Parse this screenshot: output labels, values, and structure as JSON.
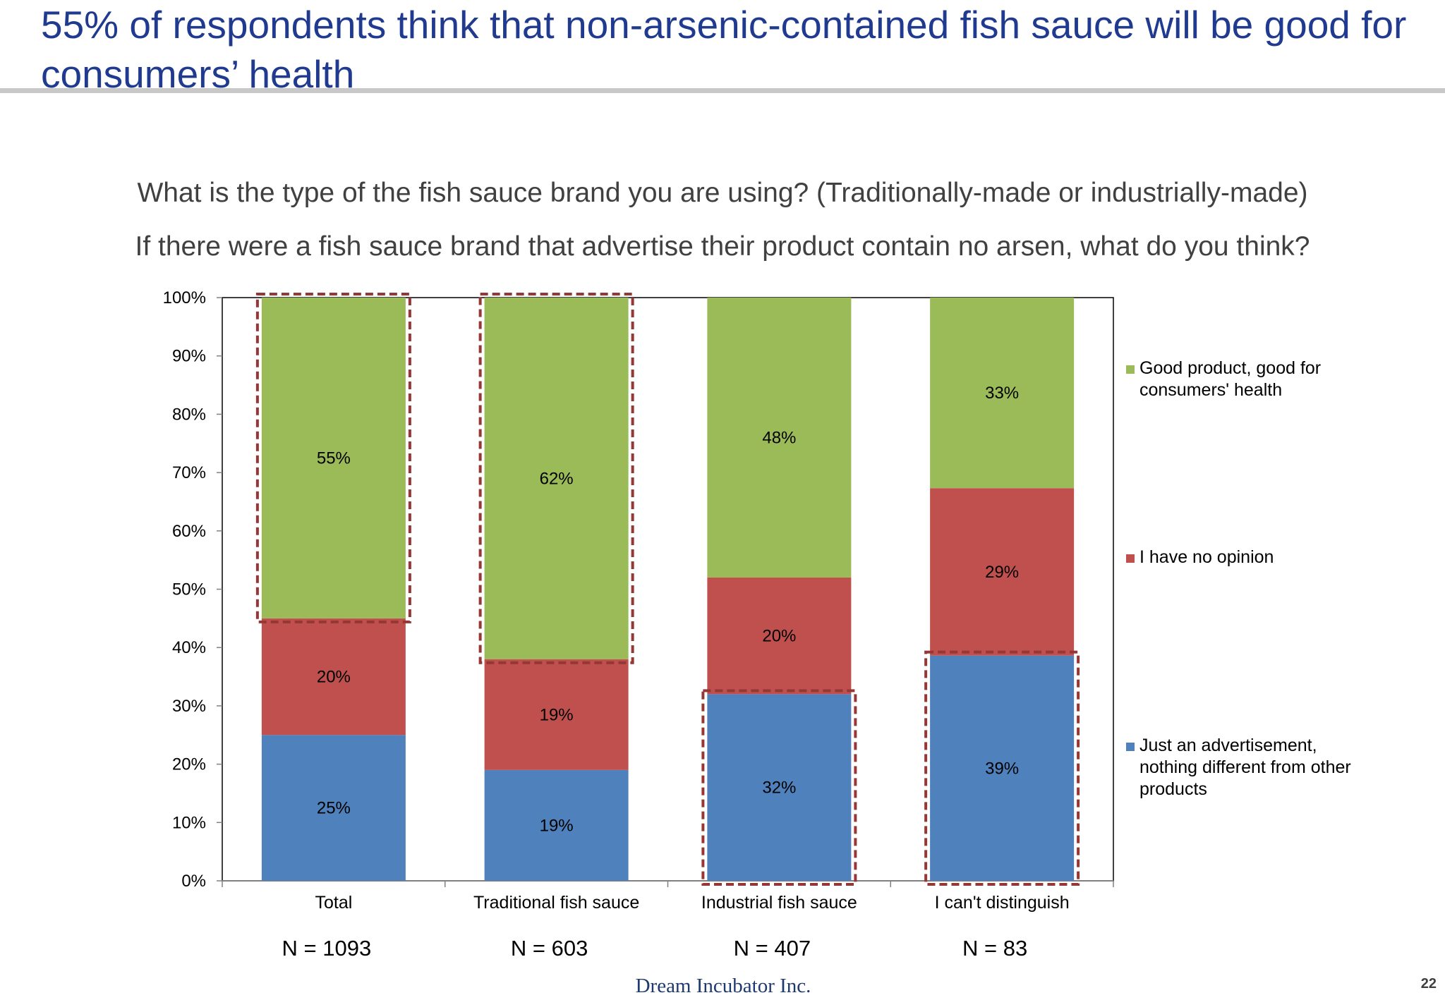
{
  "slide": {
    "title": "55% of respondents think that non-arsenic-contained fish sauce will be good for consumers’ health",
    "question1": "What is the type of the fish sauce brand you are using? (Traditionally-made or industrially-made)",
    "question2": "If there were a fish sauce brand that advertise their product contain no arsen, what do you think?",
    "footer": "Dream Incubator Inc.",
    "page_number": "22"
  },
  "chart_data": {
    "type": "bar",
    "stacked": true,
    "percent_stacked": true,
    "categories": [
      "Total",
      "Traditional fish sauce",
      "Industrial fish sauce",
      "I can't distinguish"
    ],
    "sample_sizes": [
      "N = 1093",
      "N = 603",
      "N = 407",
      "N = 83"
    ],
    "series": [
      {
        "name": "Just an advertisement, nothing different from other products",
        "values": [
          25,
          19,
          32,
          39
        ],
        "labels": [
          "25%",
          "19%",
          "32%",
          "39%"
        ],
        "color": "#4F81BD"
      },
      {
        "name": "I have no opinion",
        "values": [
          20,
          19,
          20,
          29
        ],
        "labels": [
          "20%",
          "19%",
          "20%",
          "29%"
        ],
        "color": "#C0504D"
      },
      {
        "name": "Good product, good for consumers' health",
        "values": [
          55,
          62,
          48,
          33
        ],
        "labels": [
          "55%",
          "62%",
          "48%",
          "33%"
        ],
        "color": "#9BBB59"
      }
    ],
    "yticks": [
      "0%",
      "10%",
      "20%",
      "30%",
      "40%",
      "50%",
      "60%",
      "70%",
      "80%",
      "90%",
      "100%"
    ],
    "ylim": [
      0,
      100
    ],
    "grid": false,
    "legend_position": "right",
    "highlights": [
      {
        "category": "Total",
        "series": "Good product, good for consumers' health"
      },
      {
        "category": "Traditional fish sauce",
        "series": "Good product, good for consumers' health"
      },
      {
        "category": "Industrial fish sauce",
        "series": "Just an advertisement, nothing different from other products"
      },
      {
        "category": "I can't distinguish",
        "series": "Just an advertisement, nothing different from other products"
      }
    ],
    "highlight_color": "#953735"
  }
}
